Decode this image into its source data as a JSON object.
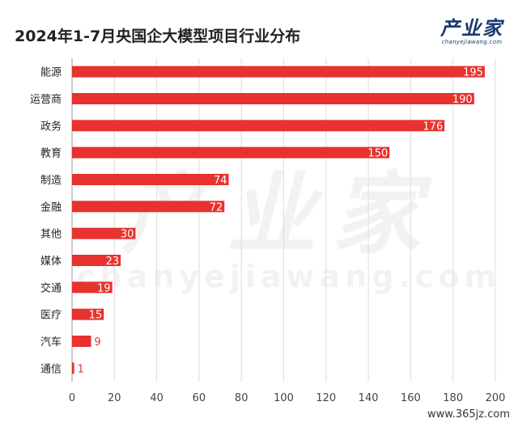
{
  "title": "2024年1-7月央国企大模型项目行业分布",
  "logo": {
    "main": "产业家",
    "sub": "chanyejiawang.com"
  },
  "watermark": {
    "main": "产业家",
    "sub": "chanyejiawang.com"
  },
  "footer": "www.365jz.com",
  "colors": {
    "bar": "#e8322f",
    "grid": "#dddddd",
    "axis": "#999999"
  },
  "chart_data": {
    "type": "bar",
    "orientation": "horizontal",
    "categories": [
      "能源",
      "运营商",
      "政务",
      "教育",
      "制造",
      "金融",
      "其他",
      "媒体",
      "交通",
      "医疗",
      "汽车",
      "通信"
    ],
    "values": [
      195,
      190,
      176,
      150,
      74,
      72,
      30,
      23,
      19,
      15,
      9,
      1
    ],
    "title": "2024年1-7月央国企大模型项目行业分布",
    "xlim": [
      0,
      200
    ],
    "xticks": [
      0,
      20,
      40,
      60,
      80,
      100,
      120,
      140,
      160,
      180,
      200
    ],
    "grid": true
  }
}
